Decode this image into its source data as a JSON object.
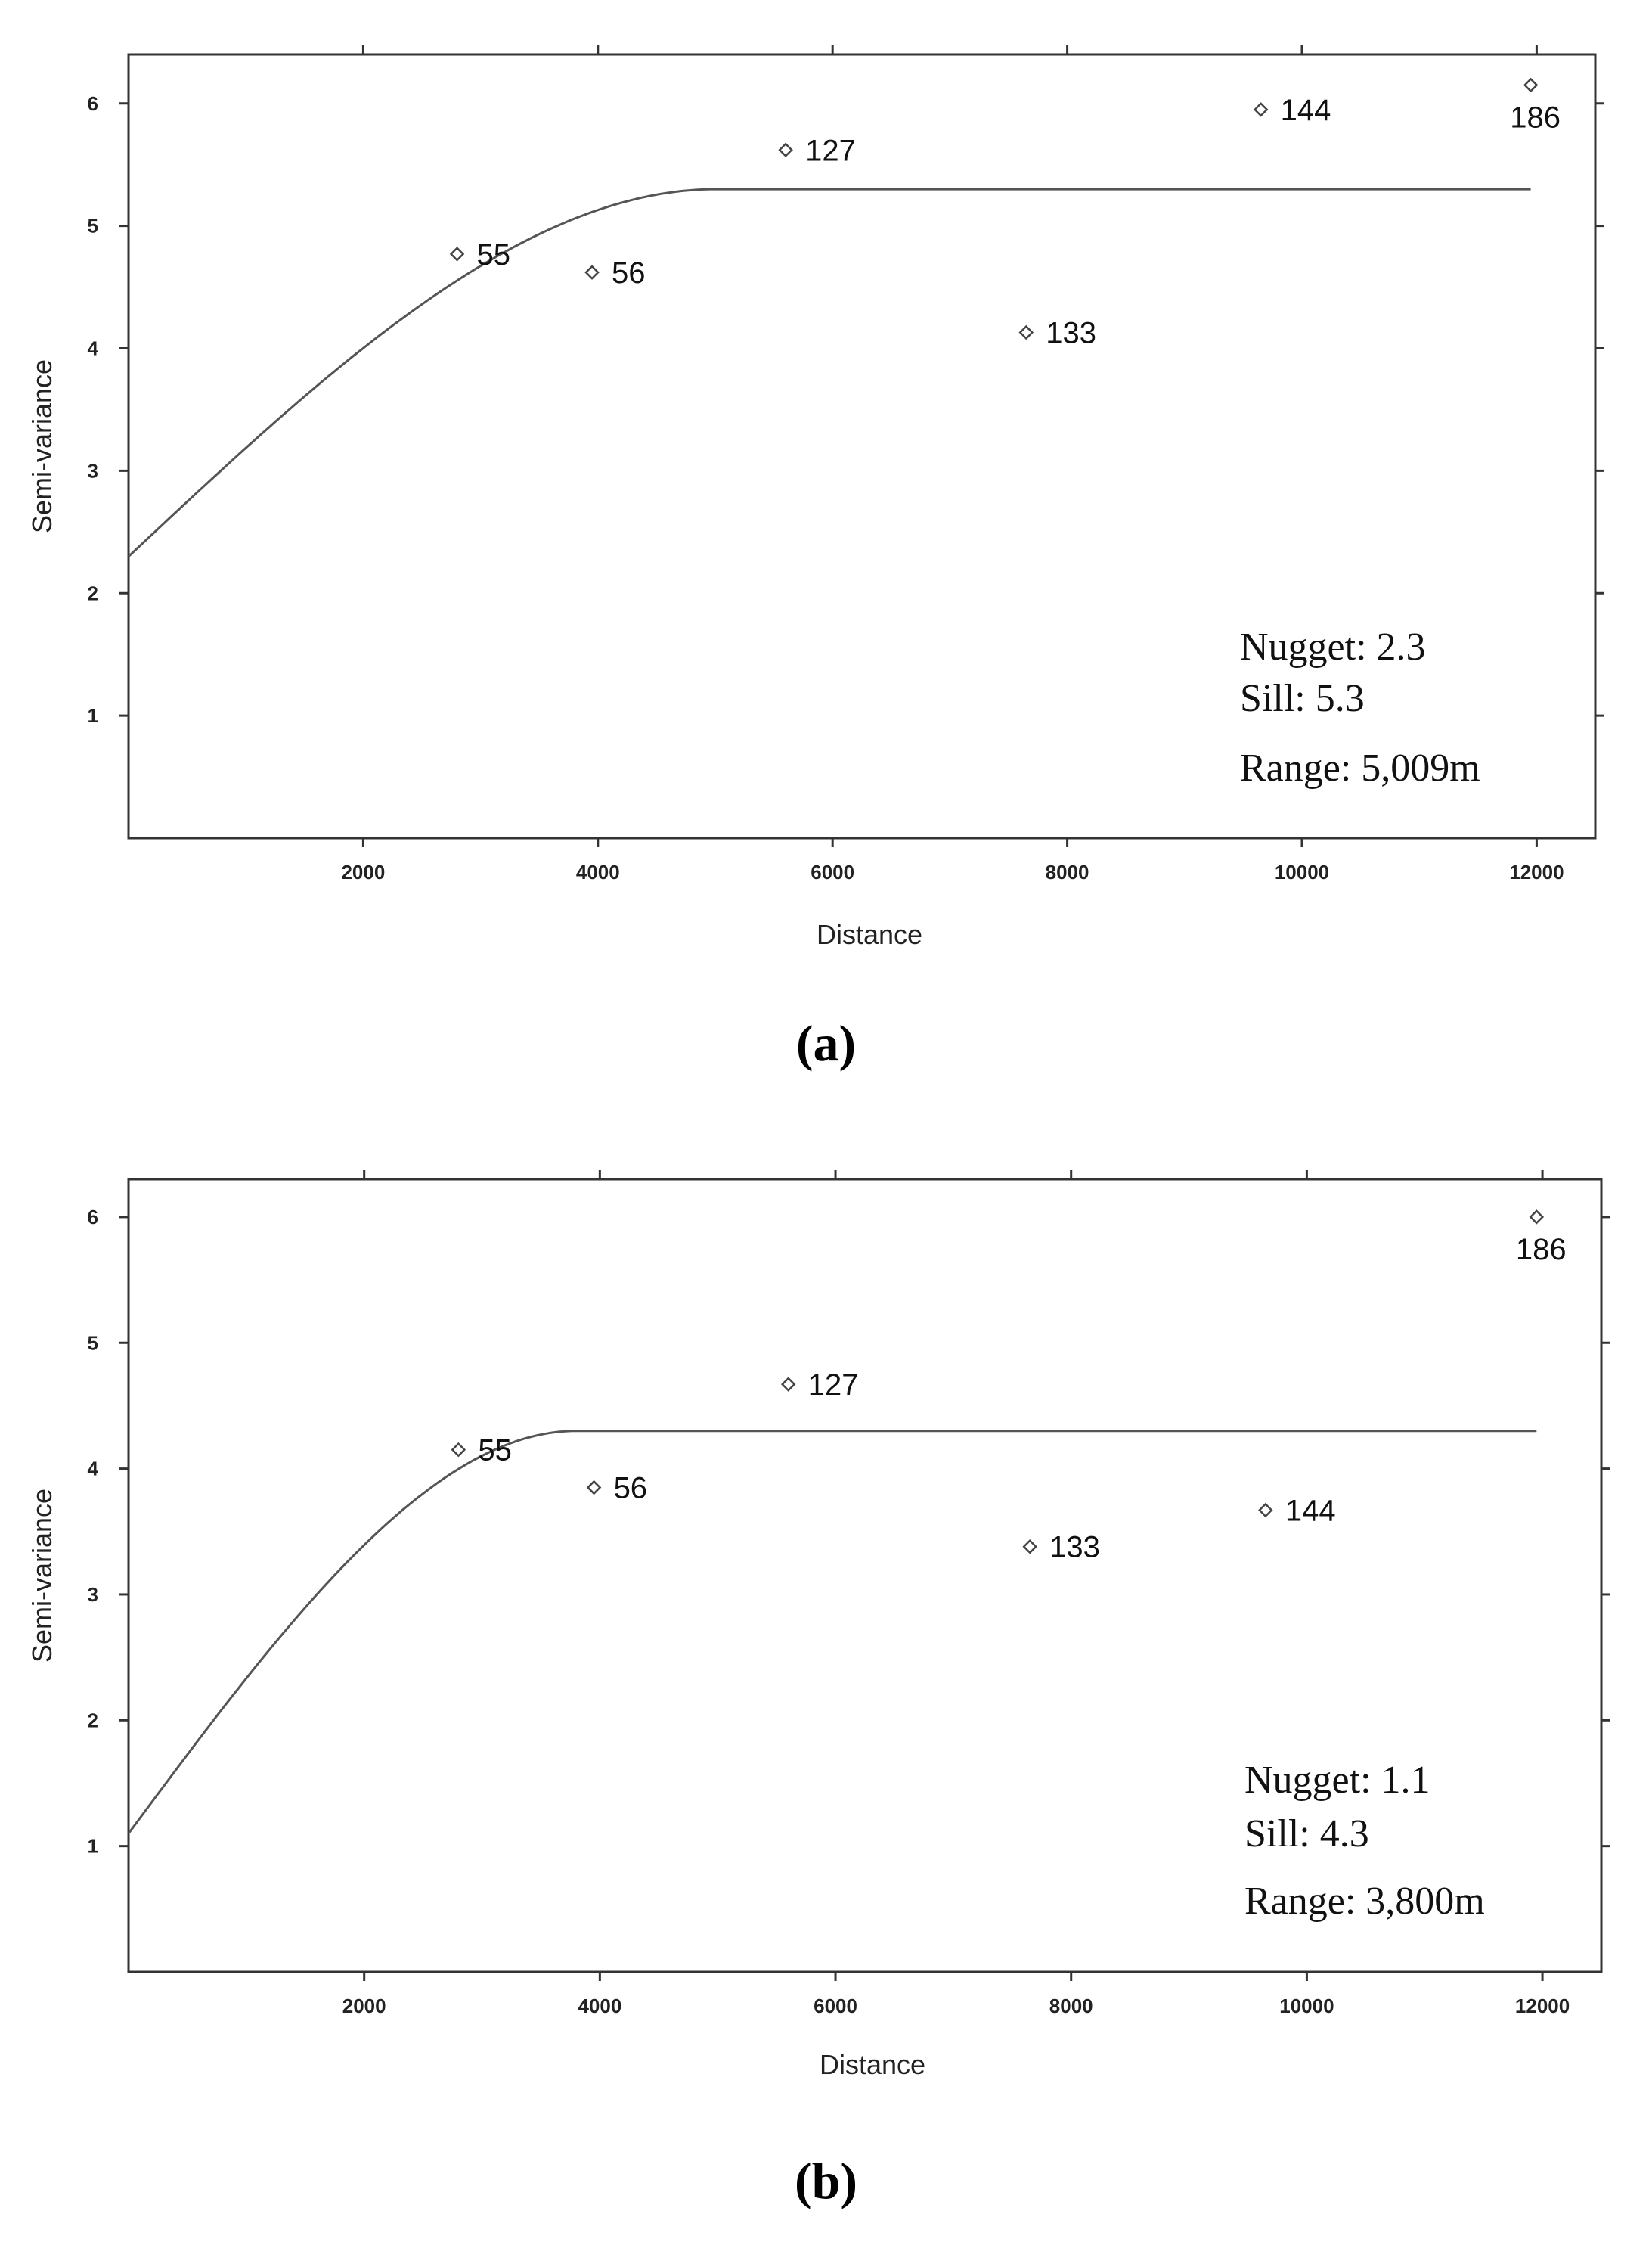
{
  "chart_data": [
    {
      "type": "scatter",
      "panel_label": "(a)",
      "xlabel": "Distance",
      "ylabel": "Semi-variance",
      "xlim": [
        0,
        12500
      ],
      "ylim": [
        0,
        6.4
      ],
      "xticks": [
        2000,
        4000,
        6000,
        8000,
        10000,
        12000
      ],
      "yticks": [
        1,
        2,
        3,
        4,
        5,
        6
      ],
      "points": [
        {
          "x": 2800,
          "y": 4.77,
          "label": "55"
        },
        {
          "x": 3950,
          "y": 4.62,
          "label": "56"
        },
        {
          "x": 5600,
          "y": 5.62,
          "label": "127"
        },
        {
          "x": 7650,
          "y": 4.13,
          "label": "133"
        },
        {
          "x": 9650,
          "y": 5.95,
          "label": "144"
        },
        {
          "x": 11950,
          "y": 6.15,
          "label": "186"
        }
      ],
      "model": {
        "type": "spherical",
        "nugget": 2.3,
        "sill": 5.3,
        "range": 5009,
        "x_end": 11950
      },
      "annotations": [
        "Nugget: 2.3",
        "Sill: 5.3",
        "Range: 5,009m"
      ],
      "grid": false
    },
    {
      "type": "scatter",
      "panel_label": "(b)",
      "xlabel": "Distance",
      "ylabel": "Semi-variance",
      "xlim": [
        0,
        12500
      ],
      "ylim": [
        0,
        6.3
      ],
      "xticks": [
        2000,
        4000,
        6000,
        8000,
        10000,
        12000
      ],
      "yticks": [
        1,
        2,
        3,
        4,
        5,
        6
      ],
      "points": [
        {
          "x": 2800,
          "y": 4.15,
          "label": "55"
        },
        {
          "x": 3950,
          "y": 3.85,
          "label": "56"
        },
        {
          "x": 5600,
          "y": 4.67,
          "label": "127"
        },
        {
          "x": 7650,
          "y": 3.38,
          "label": "133"
        },
        {
          "x": 9650,
          "y": 3.67,
          "label": "144"
        },
        {
          "x": 11950,
          "y": 6.0,
          "label": "186"
        }
      ],
      "model": {
        "type": "spherical",
        "nugget": 1.1,
        "sill": 4.3,
        "range": 3800,
        "x_end": 11950
      },
      "annotations": [
        "Nugget: 1.1",
        "Sill: 4.3",
        "Range: 3,800m"
      ],
      "grid": false
    }
  ]
}
